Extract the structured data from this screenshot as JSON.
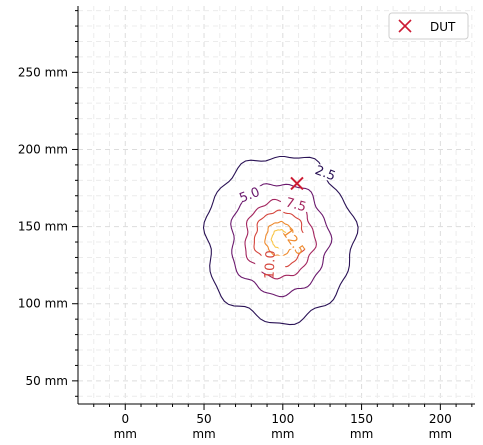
{
  "chart_data": {
    "type": "contour",
    "title": "",
    "xlabel": "",
    "ylabel": "",
    "x_unit": "mm",
    "y_unit": "mm",
    "xlim": [
      -30,
      222
    ],
    "ylim": [
      35,
      293
    ],
    "x_ticks": [
      0,
      50,
      100,
      150,
      200
    ],
    "y_ticks": [
      50,
      100,
      150,
      200,
      250
    ],
    "grid": true,
    "legend": {
      "placement": "top-right",
      "entries": [
        {
          "label": "DUT",
          "marker": "x",
          "color": "#cc1a33"
        }
      ]
    },
    "points": [
      {
        "name": "DUT",
        "x": 109,
        "y": 178
      }
    ],
    "center": {
      "x": 98,
      "y": 142
    },
    "levels": [
      {
        "value": 2.5,
        "label": "2.5",
        "color": "#2a1255",
        "radius_x": 47,
        "radius_y": 54
      },
      {
        "value": 5.0,
        "label": "5.0",
        "color": "#6b1a6e",
        "radius_x": 31,
        "radius_y": 36
      },
      {
        "value": 7.5,
        "label": "7.5",
        "color": "#a3255e",
        "radius_x": 22,
        "radius_y": 25
      },
      {
        "value": 10.0,
        "label": "10.0",
        "color": "#d5463d",
        "radius_x": 16,
        "radius_y": 18
      },
      {
        "value": 12.5,
        "label": "12.5",
        "color": "#ee8a2e",
        "radius_x": 9,
        "radius_y": 11
      },
      {
        "value": 15.0,
        "label": "",
        "color": "#f9c648",
        "radius_x": 5,
        "radius_y": 6
      }
    ]
  }
}
